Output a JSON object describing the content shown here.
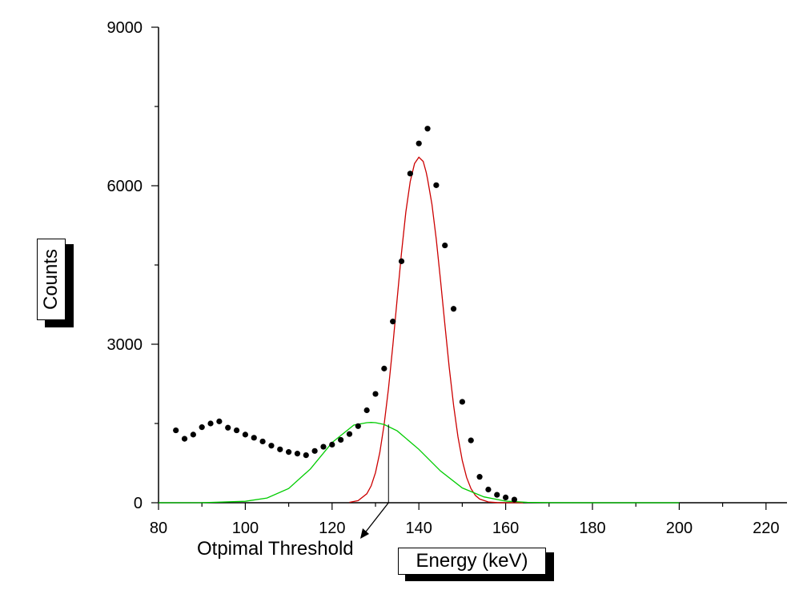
{
  "chart_data": {
    "type": "scatter",
    "xlabel": "Energy (keV)",
    "ylabel": "Counts",
    "xlim": [
      80,
      225
    ],
    "ylim": [
      0,
      9000
    ],
    "x_ticks": [
      "80",
      "100",
      "120",
      "140",
      "160",
      "180",
      "200",
      "220"
    ],
    "y_ticks": [
      "0",
      "3000",
      "6000",
      "9000"
    ],
    "grid": false,
    "legend": "none",
    "series": [
      {
        "kind": "points",
        "color": "#000000",
        "x": [
          84,
          86,
          88,
          90,
          92,
          94,
          96,
          98,
          100,
          102,
          104,
          106,
          108,
          110,
          112,
          114,
          116,
          118,
          120,
          122,
          124,
          126,
          128,
          130,
          132,
          134,
          136,
          138,
          140,
          142,
          144,
          146,
          148,
          150,
          152,
          154,
          156,
          158,
          160,
          162
        ],
        "y": [
          1370,
          1210,
          1290,
          1430,
          1500,
          1540,
          1420,
          1370,
          1290,
          1230,
          1160,
          1080,
          1010,
          960,
          930,
          900,
          980,
          1060,
          1100,
          1190,
          1300,
          1450,
          1750,
          2060,
          2540,
          3430,
          4570,
          6230,
          6800,
          7080,
          6010,
          4870,
          3670,
          1910,
          1180,
          490,
          250,
          150,
          100,
          60
        ]
      },
      {
        "kind": "curve",
        "color": "#cc0000",
        "x": [
          124,
          126,
          128,
          129,
          130,
          131,
          132,
          133,
          134,
          135,
          136,
          137,
          138,
          139,
          140,
          141,
          141.7,
          142,
          143,
          144,
          145,
          146,
          147,
          148,
          149,
          150,
          151,
          152,
          153,
          154,
          156,
          158,
          160,
          162,
          164
        ],
        "y": [
          8,
          40,
          170,
          320,
          570,
          950,
          1480,
          2170,
          2980,
          3860,
          4730,
          5500,
          6080,
          6420,
          6540,
          6460,
          6250,
          6130,
          5650,
          4990,
          4200,
          3370,
          2560,
          1840,
          1250,
          800,
          480,
          270,
          140,
          70,
          15,
          3,
          0,
          0,
          0
        ]
      },
      {
        "kind": "curve",
        "color": "#00cc00",
        "x": [
          80,
          90,
          100,
          105,
          110,
          115,
          120,
          125,
          128,
          129,
          130,
          132,
          135,
          140,
          145,
          150,
          155,
          160,
          165,
          170,
          180,
          190,
          200
        ],
        "y": [
          0,
          2,
          27,
          90,
          270,
          640,
          1140,
          1470,
          1515,
          1520,
          1515,
          1480,
          1360,
          1010,
          600,
          280,
          110,
          30,
          7,
          1,
          0,
          0,
          0
        ]
      }
    ],
    "annotation": {
      "text": "Otpimal Threshold",
      "x": 133,
      "y_top": 1480
    }
  }
}
